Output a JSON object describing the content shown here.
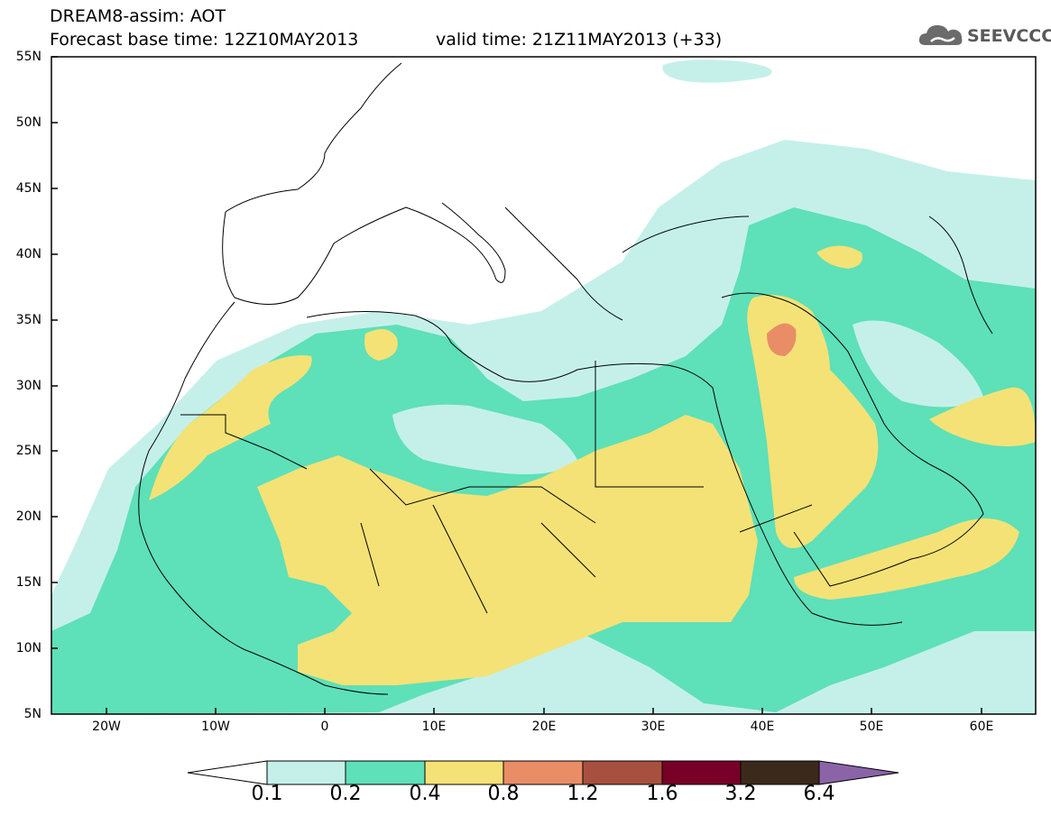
{
  "header": {
    "line1": "DREAM8-assim: AOT",
    "line2": "Forecast base time: 12Z10MAY2013",
    "line3": "valid time: 21Z11MAY2013 (+33)"
  },
  "logo": {
    "text": "SEEVCCC",
    "icon": "cloud-icon"
  },
  "map": {
    "lat_labels": [
      "55N",
      "50N",
      "45N",
      "40N",
      "35N",
      "30N",
      "25N",
      "20N",
      "15N",
      "10N",
      "5N"
    ],
    "lon_labels": [
      "20W",
      "10W",
      "0",
      "10E",
      "20E",
      "30E",
      "40E",
      "50E",
      "60E"
    ]
  },
  "colorbar": {
    "labels": [
      "0.1",
      "0.2",
      "0.4",
      "0.8",
      "1.2",
      "1.6",
      "3.2",
      "6.4"
    ],
    "colors": [
      "#ffffff",
      "#c5f0ea",
      "#5ee0b8",
      "#f4e276",
      "#e98d66",
      "#a85040",
      "#780028",
      "#3b2a1c",
      "#8b64a8"
    ]
  }
}
